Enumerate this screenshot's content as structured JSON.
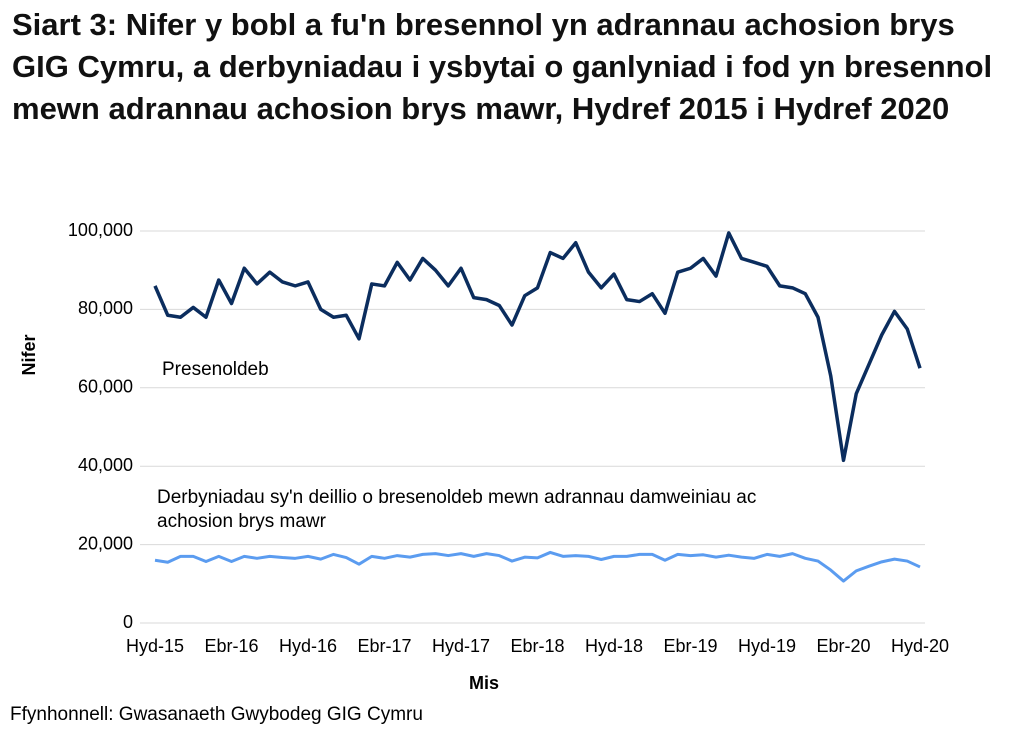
{
  "chart_data": {
    "type": "line",
    "title": "Siart 3: Nifer y bobl a fu'n bresennol yn adrannau achosion brys GIG Cymru, a derbyniadau i ysbytai o ganlyniad i fod yn bresennol mewn adrannau achosion brys mawr, Hydref 2015 i Hydref 2020",
    "x_label": "Mis",
    "y_label": "Nifer",
    "source": "Ffynhonnell: Gwasanaeth Gwybodeg GIG Cymru",
    "categories": [
      "Hyd-15",
      null,
      null,
      null,
      null,
      null,
      "Ebr-16",
      null,
      null,
      null,
      null,
      null,
      "Hyd-16",
      null,
      null,
      null,
      null,
      null,
      "Ebr-17",
      null,
      null,
      null,
      null,
      null,
      "Hyd-17",
      null,
      null,
      null,
      null,
      null,
      "Ebr-18",
      null,
      null,
      null,
      null,
      null,
      "Hyd-18",
      null,
      null,
      null,
      null,
      null,
      "Ebr-19",
      null,
      null,
      null,
      null,
      null,
      "Hyd-19",
      null,
      null,
      null,
      null,
      null,
      "Ebr-20",
      null,
      null,
      null,
      null,
      null,
      "Hyd-20"
    ],
    "series": [
      {
        "name": "Presenoldeb",
        "color": "#0b2d5e",
        "values": [
          86000,
          78500,
          78000,
          80500,
          78000,
          87500,
          81500,
          90500,
          86500,
          89500,
          87000,
          86000,
          87000,
          80000,
          78000,
          78500,
          72500,
          86500,
          86000,
          92000,
          87500,
          93000,
          90000,
          86000,
          90500,
          83000,
          82500,
          81000,
          76000,
          83500,
          85500,
          94500,
          93000,
          97000,
          89500,
          85500,
          89000,
          82500,
          82000,
          84000,
          79000,
          89500,
          90500,
          93000,
          88500,
          99500,
          93000,
          92000,
          91000,
          86000,
          85500,
          84000,
          78000,
          63000,
          41500,
          58500,
          66000,
          73500,
          79500,
          75000,
          65000
        ]
      },
      {
        "name": "Derbyniadau sy'n deillio o bresenoldeb mewn adrannau damweiniau ac achosion brys mawr",
        "color": "#5b9cf0",
        "values": [
          16000,
          15500,
          17000,
          17000,
          15700,
          17000,
          15700,
          17000,
          16500,
          17000,
          16700,
          16500,
          17000,
          16300,
          17500,
          16700,
          15000,
          17000,
          16500,
          17200,
          16800,
          17500,
          17700,
          17200,
          17700,
          17000,
          17700,
          17200,
          15800,
          16800,
          16600,
          18000,
          17000,
          17200,
          17000,
          16200,
          17000,
          17000,
          17500,
          17500,
          16000,
          17500,
          17200,
          17400,
          16800,
          17300,
          16800,
          16500,
          17500,
          17000,
          17700,
          16500,
          15800,
          13500,
          10700,
          13300,
          14500,
          15600,
          16300,
          15800,
          14300
        ]
      }
    ],
    "ylim": [
      0,
      100000
    ],
    "yticks": [
      0,
      {
        "value": 20000,
        "label": "20,000"
      },
      {
        "value": 40000,
        "label": "40,000"
      },
      {
        "value": 60000,
        "label": "60,000"
      },
      {
        "value": 80000,
        "label": "80,000"
      },
      {
        "value": 100000,
        "label": "100,000"
      }
    ],
    "grid": true
  }
}
